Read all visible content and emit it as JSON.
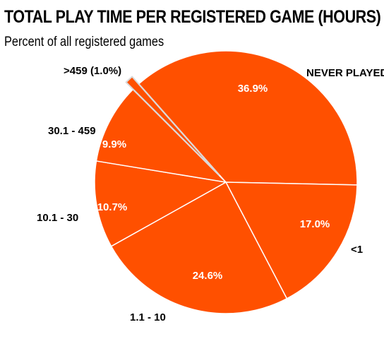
{
  "chart_data": {
    "type": "pie",
    "title": "TOTAL PLAY TIME PER REGISTERED GAME (HOURS)",
    "subtitle": "Percent of all registered games",
    "categories": [
      "Never played",
      "<1",
      "1.1 - 10",
      "10.1 - 30",
      "30.1 - 459",
      ">459"
    ],
    "display_labels": [
      "NEVER PLAYED",
      "<1",
      "1.1 - 10",
      "10.1 - 30",
      "30.1 - 459",
      ">459 (1.0%)"
    ],
    "values": [
      36.9,
      17.0,
      24.6,
      10.7,
      9.9,
      1.0
    ],
    "value_labels": [
      "36.9%",
      "17.0%",
      "24.6%",
      "10.7%",
      "9.9%",
      ""
    ],
    "exploded": [
      false,
      false,
      false,
      false,
      false,
      true
    ],
    "colors": {
      "slice": "#FF5000",
      "border": "#ffffff",
      "exploded_border": "#d9d9d9"
    },
    "legend": "none"
  }
}
